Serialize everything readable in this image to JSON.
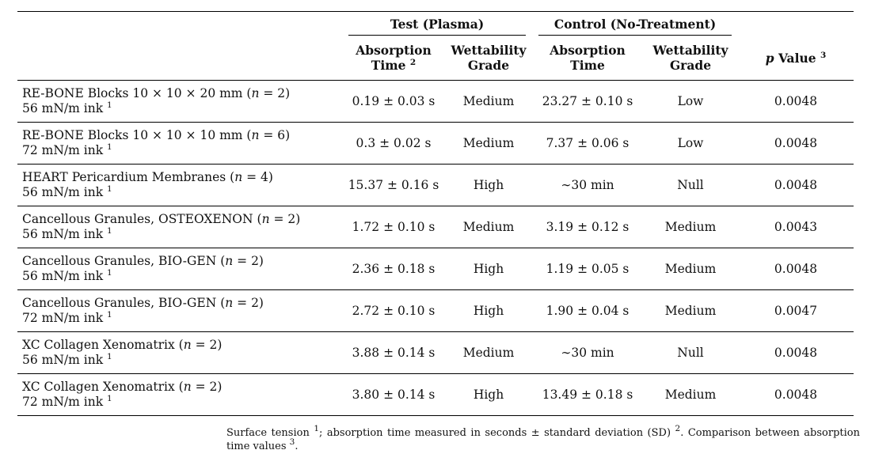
{
  "header": {
    "test_group": "Test (Plasma)",
    "control_group": "Control (No-Treatment)",
    "col_absorption": "Absorption",
    "col_time": "Time",
    "col_time_sup": "2",
    "col_wettability": "Wettability",
    "col_grade": "Grade",
    "col_p_italic": "p",
    "col_p_rest": "Value",
    "col_p_sup": "3"
  },
  "rows": [
    {
      "name_pre": "RE-BONE Blocks 10 × 10 × 20 mm (",
      "n_val": " = 2)",
      "ink": "56 mN/m ink",
      "ink_sup": "1",
      "test_time": "0.19 ± 0.03 s",
      "test_grade": "Medium",
      "ctrl_time": "23.27 ± 0.10 s",
      "ctrl_grade": "Low",
      "p": "0.0048"
    },
    {
      "name_pre": "RE-BONE Blocks 10 × 10 × 10 mm (",
      "n_val": " = 6)",
      "ink": "72 mN/m ink",
      "ink_sup": "1",
      "test_time": "0.3 ± 0.02 s",
      "test_grade": "Medium",
      "ctrl_time": "7.37 ± 0.06 s",
      "ctrl_grade": "Low",
      "p": "0.0048"
    },
    {
      "name_pre": "HEART Pericardium Membranes (",
      "n_val": " = 4)",
      "ink": "56 mN/m ink",
      "ink_sup": "1",
      "test_time": "15.37 ± 0.16 s",
      "test_grade": "High",
      "ctrl_time": "∼30 min",
      "ctrl_grade": "Null",
      "p": "0.0048"
    },
    {
      "name_pre": "Cancellous Granules, OSTEOXENON (",
      "n_val": " = 2)",
      "ink": "56 mN/m ink",
      "ink_sup": "1",
      "test_time": "1.72 ± 0.10 s",
      "test_grade": "Medium",
      "ctrl_time": "3.19 ± 0.12 s",
      "ctrl_grade": "Medium",
      "p": "0.0043"
    },
    {
      "name_pre": "Cancellous Granules, BIO-GEN (",
      "n_val": " = 2)",
      "ink": "56 mN/m ink",
      "ink_sup": "1",
      "test_time": "2.36 ± 0.18 s",
      "test_grade": "High",
      "ctrl_time": "1.19 ± 0.05 s",
      "ctrl_grade": "Medium",
      "p": "0.0048"
    },
    {
      "name_pre": "Cancellous Granules, BIO-GEN (",
      "n_val": " = 2)",
      "ink": "72 mN/m ink",
      "ink_sup": "1",
      "test_time": "2.72 ± 0.10 s",
      "test_grade": "High",
      "ctrl_time": "1.90 ± 0.04 s",
      "ctrl_grade": "Medium",
      "p": "0.0047"
    },
    {
      "name_pre": "XC Collagen Xenomatrix (",
      "n_val": " = 2)",
      "ink": "56 mN/m ink",
      "ink_sup": "1",
      "test_time": "3.88 ± 0.14 s",
      "test_grade": "Medium",
      "ctrl_time": "∼30 min",
      "ctrl_grade": "Null",
      "p": "0.0048"
    },
    {
      "name_pre": "XC Collagen Xenomatrix (",
      "n_val": " = 2)",
      "ink": "72 mN/m ink",
      "ink_sup": "1",
      "test_time": "3.80 ± 0.14 s",
      "test_grade": "High",
      "ctrl_time": "13.49 ± 0.18 s",
      "ctrl_grade": "Medium",
      "p": "0.0048"
    }
  ],
  "n_symbol": "n",
  "footnote": {
    "part1": "Surface tension ",
    "sup1": "1",
    "part2": "; absorption time measured in seconds ± standard deviation (SD) ",
    "sup2": "2",
    "part3": ". Comparison between absorption time values ",
    "sup3": "3",
    "part4": "."
  }
}
